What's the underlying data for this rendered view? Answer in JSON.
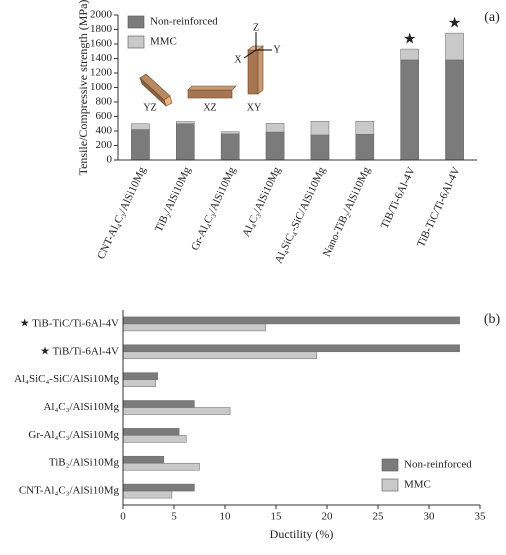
{
  "chart_data": [
    {
      "type": "bar",
      "mode": "overlap",
      "panel_label": "(a)",
      "ylabel": "Tensile/Compressive strength (MPa)",
      "categories": [
        "CNT-Al₄C₃/AlSi10Mg",
        "TiB₂/AlSi10Mg",
        "Gr-Al₄C₃/AlSi10Mg",
        "Al₄C₃/AlSi10Mg",
        "Al₄SiC₄-SiC/AlSi10Mg",
        "Nano-TiB₂/AlSi10Mg",
        "TiB/Ti-6Al-4V",
        "TiB-TiC/Ti-6Al-4V"
      ],
      "series": [
        {
          "name": "Non-reinforced",
          "color": "#7b7b7b",
          "values": [
            420,
            500,
            360,
            385,
            345,
            355,
            1380,
            1380
          ]
        },
        {
          "name": "MMC",
          "color": "#c9c9c9",
          "values": [
            500,
            530,
            390,
            505,
            535,
            535,
            1530,
            1750
          ]
        }
      ],
      "annotations": [
        {
          "text": "★",
          "x": "TiB/Ti-6Al-4V"
        },
        {
          "text": "★",
          "x": "TiB-TiC/Ti-6Al-4V"
        }
      ],
      "inset_labels": [
        "YZ",
        "XZ",
        "XY"
      ],
      "inset_axes": [
        "Z",
        "Y",
        "X"
      ],
      "ylim": [
        0,
        2000
      ],
      "yticks": [
        0,
        200,
        400,
        600,
        800,
        1000,
        1200,
        1400,
        1600,
        1800,
        2000
      ],
      "legend": "upper left"
    },
    {
      "type": "barh",
      "mode": "grouped",
      "panel_label": "(b)",
      "xlabel": "Ductility (%)",
      "categories": [
        "★ TiB-TiC/Ti-6Al-4V",
        "★ TiB/Ti-6Al-4V",
        "Al₄SiC₄-SiC/AlSi10Mg",
        "Al₄C₃/AlSi10Mg",
        "Gr-Al₄C₃/AlSi10Mg",
        "TiB₂/AlSi10Mg",
        "CNT-Al₄C₃/AlSi10Mg"
      ],
      "series": [
        {
          "name": "Non-reinforced",
          "color": "#7b7b7b",
          "values": [
            33,
            33,
            3.4,
            7,
            5.5,
            4,
            7
          ]
        },
        {
          "name": "MMC",
          "color": "#c9c9c9",
          "values": [
            14,
            19,
            3.2,
            10.5,
            6.2,
            7.5,
            4.8
          ]
        }
      ],
      "xlim": [
        0,
        35
      ],
      "xticks": [
        0,
        5,
        10,
        15,
        20,
        25,
        30,
        35
      ],
      "legend": "lower right"
    }
  ]
}
